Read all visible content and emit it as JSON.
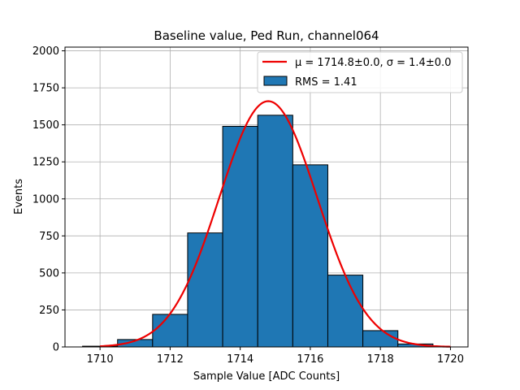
{
  "chart_data": {
    "type": "bar",
    "title": "Baseline value, Ped Run, channel064",
    "xlabel": "Sample Value [ADC Counts]",
    "ylabel": "Events",
    "xlim": [
      1709,
      1720.5
    ],
    "ylim": [
      0,
      2025
    ],
    "x_ticks": [
      1710,
      1712,
      1714,
      1716,
      1718,
      1720
    ],
    "y_ticks": [
      0,
      250,
      500,
      750,
      1000,
      1250,
      1500,
      1750,
      2000
    ],
    "grid": true,
    "legend_position": "top-right",
    "histogram": {
      "name": "RMS = 1.41",
      "color": "#1f77b4",
      "edge_color": "#000000",
      "bins": [
        {
          "left": 1709.5,
          "right": 1710.5,
          "value": 5
        },
        {
          "left": 1710.5,
          "right": 1711.5,
          "value": 50
        },
        {
          "left": 1711.5,
          "right": 1712.5,
          "value": 220
        },
        {
          "left": 1712.5,
          "right": 1713.5,
          "value": 770
        },
        {
          "left": 1713.5,
          "right": 1714.5,
          "value": 1490
        },
        {
          "left": 1714.5,
          "right": 1715.5,
          "value": 1565
        },
        {
          "left": 1715.5,
          "right": 1716.5,
          "value": 1230
        },
        {
          "left": 1716.5,
          "right": 1717.5,
          "value": 485
        },
        {
          "left": 1717.5,
          "right": 1718.5,
          "value": 110
        },
        {
          "left": 1718.5,
          "right": 1719.5,
          "value": 20
        }
      ]
    },
    "fit": {
      "name": "μ = 1714.8±0.0, σ = 1.4±0.0",
      "type": "gaussian",
      "mu": 1714.8,
      "sigma": 1.4,
      "amplitude": 1660,
      "x_range": [
        1710,
        1720
      ],
      "color": "#ee0000"
    }
  }
}
